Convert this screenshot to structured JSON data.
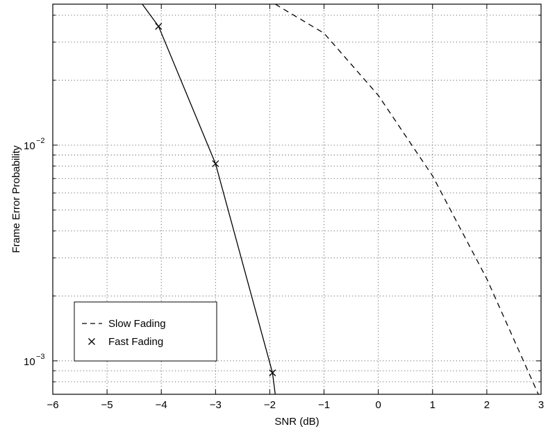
{
  "chart_data": {
    "type": "line",
    "title": "",
    "xlabel": "SNR (dB)",
    "ylabel": "Frame Error Probability",
    "xlim": [
      -6,
      3
    ],
    "ylim": [
      0.0007,
      0.045
    ],
    "y_scale": "log",
    "grid": true,
    "legend_position": "lower-left",
    "x_ticks": [
      -6,
      -5,
      -4,
      -3,
      -2,
      -1,
      0,
      1,
      2,
      3
    ],
    "x_tick_labels": [
      "−6",
      "−5",
      "−4",
      "−3",
      "−2",
      "−1",
      "0",
      "1",
      "2",
      "3"
    ],
    "y_tick_labels": [
      {
        "value": 0.01,
        "base": "10",
        "exp": "−2"
      },
      {
        "value": 0.001,
        "base": "10",
        "exp": "−3"
      }
    ],
    "series": [
      {
        "name": "Slow Fading",
        "style": "dashed",
        "color": "#000000",
        "marker": "none",
        "x": [
          -1.9,
          -1.0,
          0.0,
          1.0,
          2.0,
          2.95
        ],
        "y": [
          0.045,
          0.033,
          0.017,
          0.0072,
          0.0024,
          0.0007
        ]
      },
      {
        "name": "Fast Fading",
        "style": "solid",
        "color": "#000000",
        "marker": "none",
        "x": [
          -4.35,
          -4.05,
          -3.0,
          -1.95,
          -1.9
        ],
        "y": [
          0.045,
          0.0355,
          0.0082,
          0.00088,
          0.0007
        ]
      },
      {
        "name": "Fast Fading markers",
        "style": "none",
        "color": "#000000",
        "marker": "x",
        "x": [
          -4.05,
          -3.0,
          -1.95
        ],
        "y": [
          0.0355,
          0.0082,
          0.00088
        ]
      }
    ],
    "legend": [
      {
        "label": "Slow Fading",
        "symbol": "dashed-line"
      },
      {
        "label": "Fast Fading",
        "symbol": "x-marker"
      }
    ]
  }
}
